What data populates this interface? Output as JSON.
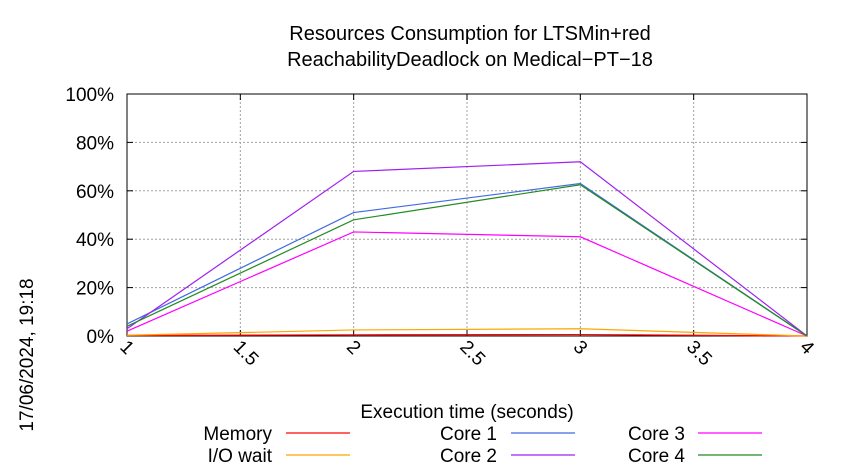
{
  "chart_data": {
    "type": "line",
    "title": [
      "Resources Consumption for LTSMin+red",
      "ReachabilityDeadlock on Medical−PT−18"
    ],
    "xlabel": "Execution time (seconds)",
    "ylabel": "",
    "side_label": "17/06/2024, 19:18",
    "x_ticks": [
      "1",
      "1.5",
      "2",
      "2.5",
      "3",
      "3.5",
      "4"
    ],
    "y_ticks": [
      "0%",
      "20%",
      "40%",
      "60%",
      "80%",
      "100%"
    ],
    "xlim": [
      1,
      4
    ],
    "ylim": [
      0,
      100
    ],
    "grid": true,
    "legend_position": "bottom",
    "x": [
      1,
      2,
      3,
      4
    ],
    "series": [
      {
        "name": "Memory",
        "color": "#ff0000",
        "values": [
          0.2,
          0.5,
          0.6,
          0.0
        ]
      },
      {
        "name": "I/O wait",
        "color": "#ffa500",
        "values": [
          0.3,
          2.5,
          3.0,
          0.0
        ]
      },
      {
        "name": "Core 1",
        "color": "#4169e1",
        "values": [
          5,
          51,
          63,
          0
        ]
      },
      {
        "name": "Core 2",
        "color": "#a020f0",
        "values": [
          3,
          68,
          72,
          0
        ]
      },
      {
        "name": "Core 3",
        "color": "#ff00ff",
        "values": [
          2,
          43,
          41,
          0
        ]
      },
      {
        "name": "Core 4",
        "color": "#228b22",
        "values": [
          4,
          48,
          62.5,
          0
        ]
      }
    ]
  }
}
